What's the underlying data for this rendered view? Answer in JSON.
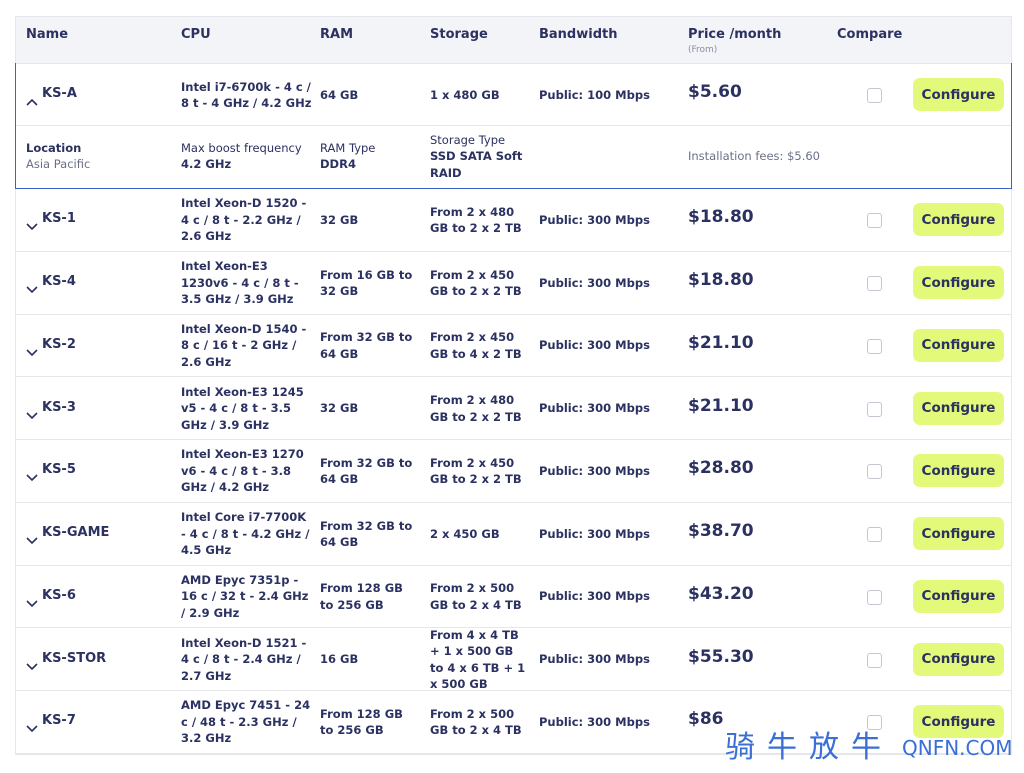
{
  "header": {
    "columns": [
      "Name",
      "CPU",
      "RAM",
      "Storage",
      "Bandwidth",
      "Price /month",
      "Compare"
    ],
    "price_note": "(From)"
  },
  "expanded": {
    "name": "KS-A",
    "cpu": "Intel i7-6700k - 4 c / 8 t - 4 GHz / 4.2 GHz",
    "ram": "64 GB",
    "storage": "1 x 480 GB",
    "bandwidth": "Public: 100 Mbps",
    "price": "$5.60",
    "button": "Configure",
    "details": {
      "location_label": "Location",
      "location": "Asia Pacific",
      "boost_label": "Max boost frequency",
      "boost": "4.2 GHz",
      "ram_type_label": "RAM Type",
      "ram_type": "DDR4",
      "storage_type_label": "Storage Type",
      "storage_type": "SSD SATA Soft RAID",
      "installation": "Installation fees: $5.60"
    }
  },
  "rows": [
    {
      "name": "KS-1",
      "cpu": "Intel Xeon-D 1520 - 4 c / 8 t - 2.2 GHz / 2.6 GHz",
      "ram": "32 GB",
      "storage": "From 2 x 480 GB to 2 x 2 TB",
      "bandwidth": "Public: 300 Mbps",
      "price": "$18.80",
      "button": "Configure"
    },
    {
      "name": "KS-4",
      "cpu": "Intel Xeon-E3 1230v6 - 4 c / 8 t - 3.5 GHz / 3.9 GHz",
      "ram": "From 16 GB to 32 GB",
      "storage": "From 2 x 450 GB to 2 x 2 TB",
      "bandwidth": "Public: 300 Mbps",
      "price": "$18.80",
      "button": "Configure"
    },
    {
      "name": "KS-2",
      "cpu": "Intel Xeon-D 1540 - 8 c / 16 t - 2 GHz / 2.6 GHz",
      "ram": "From 32 GB to 64 GB",
      "storage": "From 2 x 450 GB to 4 x 2 TB",
      "bandwidth": "Public: 300 Mbps",
      "price": "$21.10",
      "button": "Configure"
    },
    {
      "name": "KS-3",
      "cpu": "Intel Xeon-E3 1245 v5 - 4 c / 8 t - 3.5 GHz / 3.9 GHz",
      "ram": "32 GB",
      "storage": "From 2 x 480 GB to 2 x 2 TB",
      "bandwidth": "Public: 300 Mbps",
      "price": "$21.10",
      "button": "Configure"
    },
    {
      "name": "KS-5",
      "cpu": "Intel Xeon-E3 1270 v6 - 4 c / 8 t - 3.8 GHz / 4.2 GHz",
      "ram": "From 32 GB to 64 GB",
      "storage": "From 2 x 450 GB to 2 x 2 TB",
      "bandwidth": "Public: 300 Mbps",
      "price": "$28.80",
      "button": "Configure"
    },
    {
      "name": "KS-GAME",
      "cpu": "Intel Core i7-7700K - 4 c / 8 t - 4.2 GHz / 4.5 GHz",
      "ram": "From 32 GB to 64 GB",
      "storage": "2 x 450 GB",
      "bandwidth": "Public: 300 Mbps",
      "price": "$38.70",
      "button": "Configure"
    },
    {
      "name": "KS-6",
      "cpu": "AMD Epyc 7351p - 16 c / 32 t - 2.4 GHz / 2.9 GHz",
      "ram": "From 128 GB to 256 GB",
      "storage": "From 2 x 500 GB to 2 x 4 TB",
      "bandwidth": "Public: 300 Mbps",
      "price": "$43.20",
      "button": "Configure"
    },
    {
      "name": "KS-STOR",
      "cpu": "Intel Xeon-D 1521 - 4 c / 8 t - 2.4 GHz / 2.7 GHz",
      "ram": "16 GB",
      "storage": "From 4 x 4 TB + 1 x 500 GB to 4 x 6 TB + 1 x 500 GB",
      "bandwidth": "Public: 300 Mbps",
      "price": "$55.30",
      "button": "Configure"
    },
    {
      "name": "KS-7",
      "cpu": "AMD Epyc 7451 - 24 c / 48 t - 2.3 GHz / 3.2 GHz",
      "ram": "From 128 GB to 256 GB",
      "storage": "From 2 x 500 GB to 2 x 4 TB",
      "bandwidth": "Public: 300 Mbps",
      "price": "$86",
      "button": "Configure"
    }
  ],
  "watermark": {
    "cn": "骑牛放牛",
    "site": "QNFN.COM"
  }
}
